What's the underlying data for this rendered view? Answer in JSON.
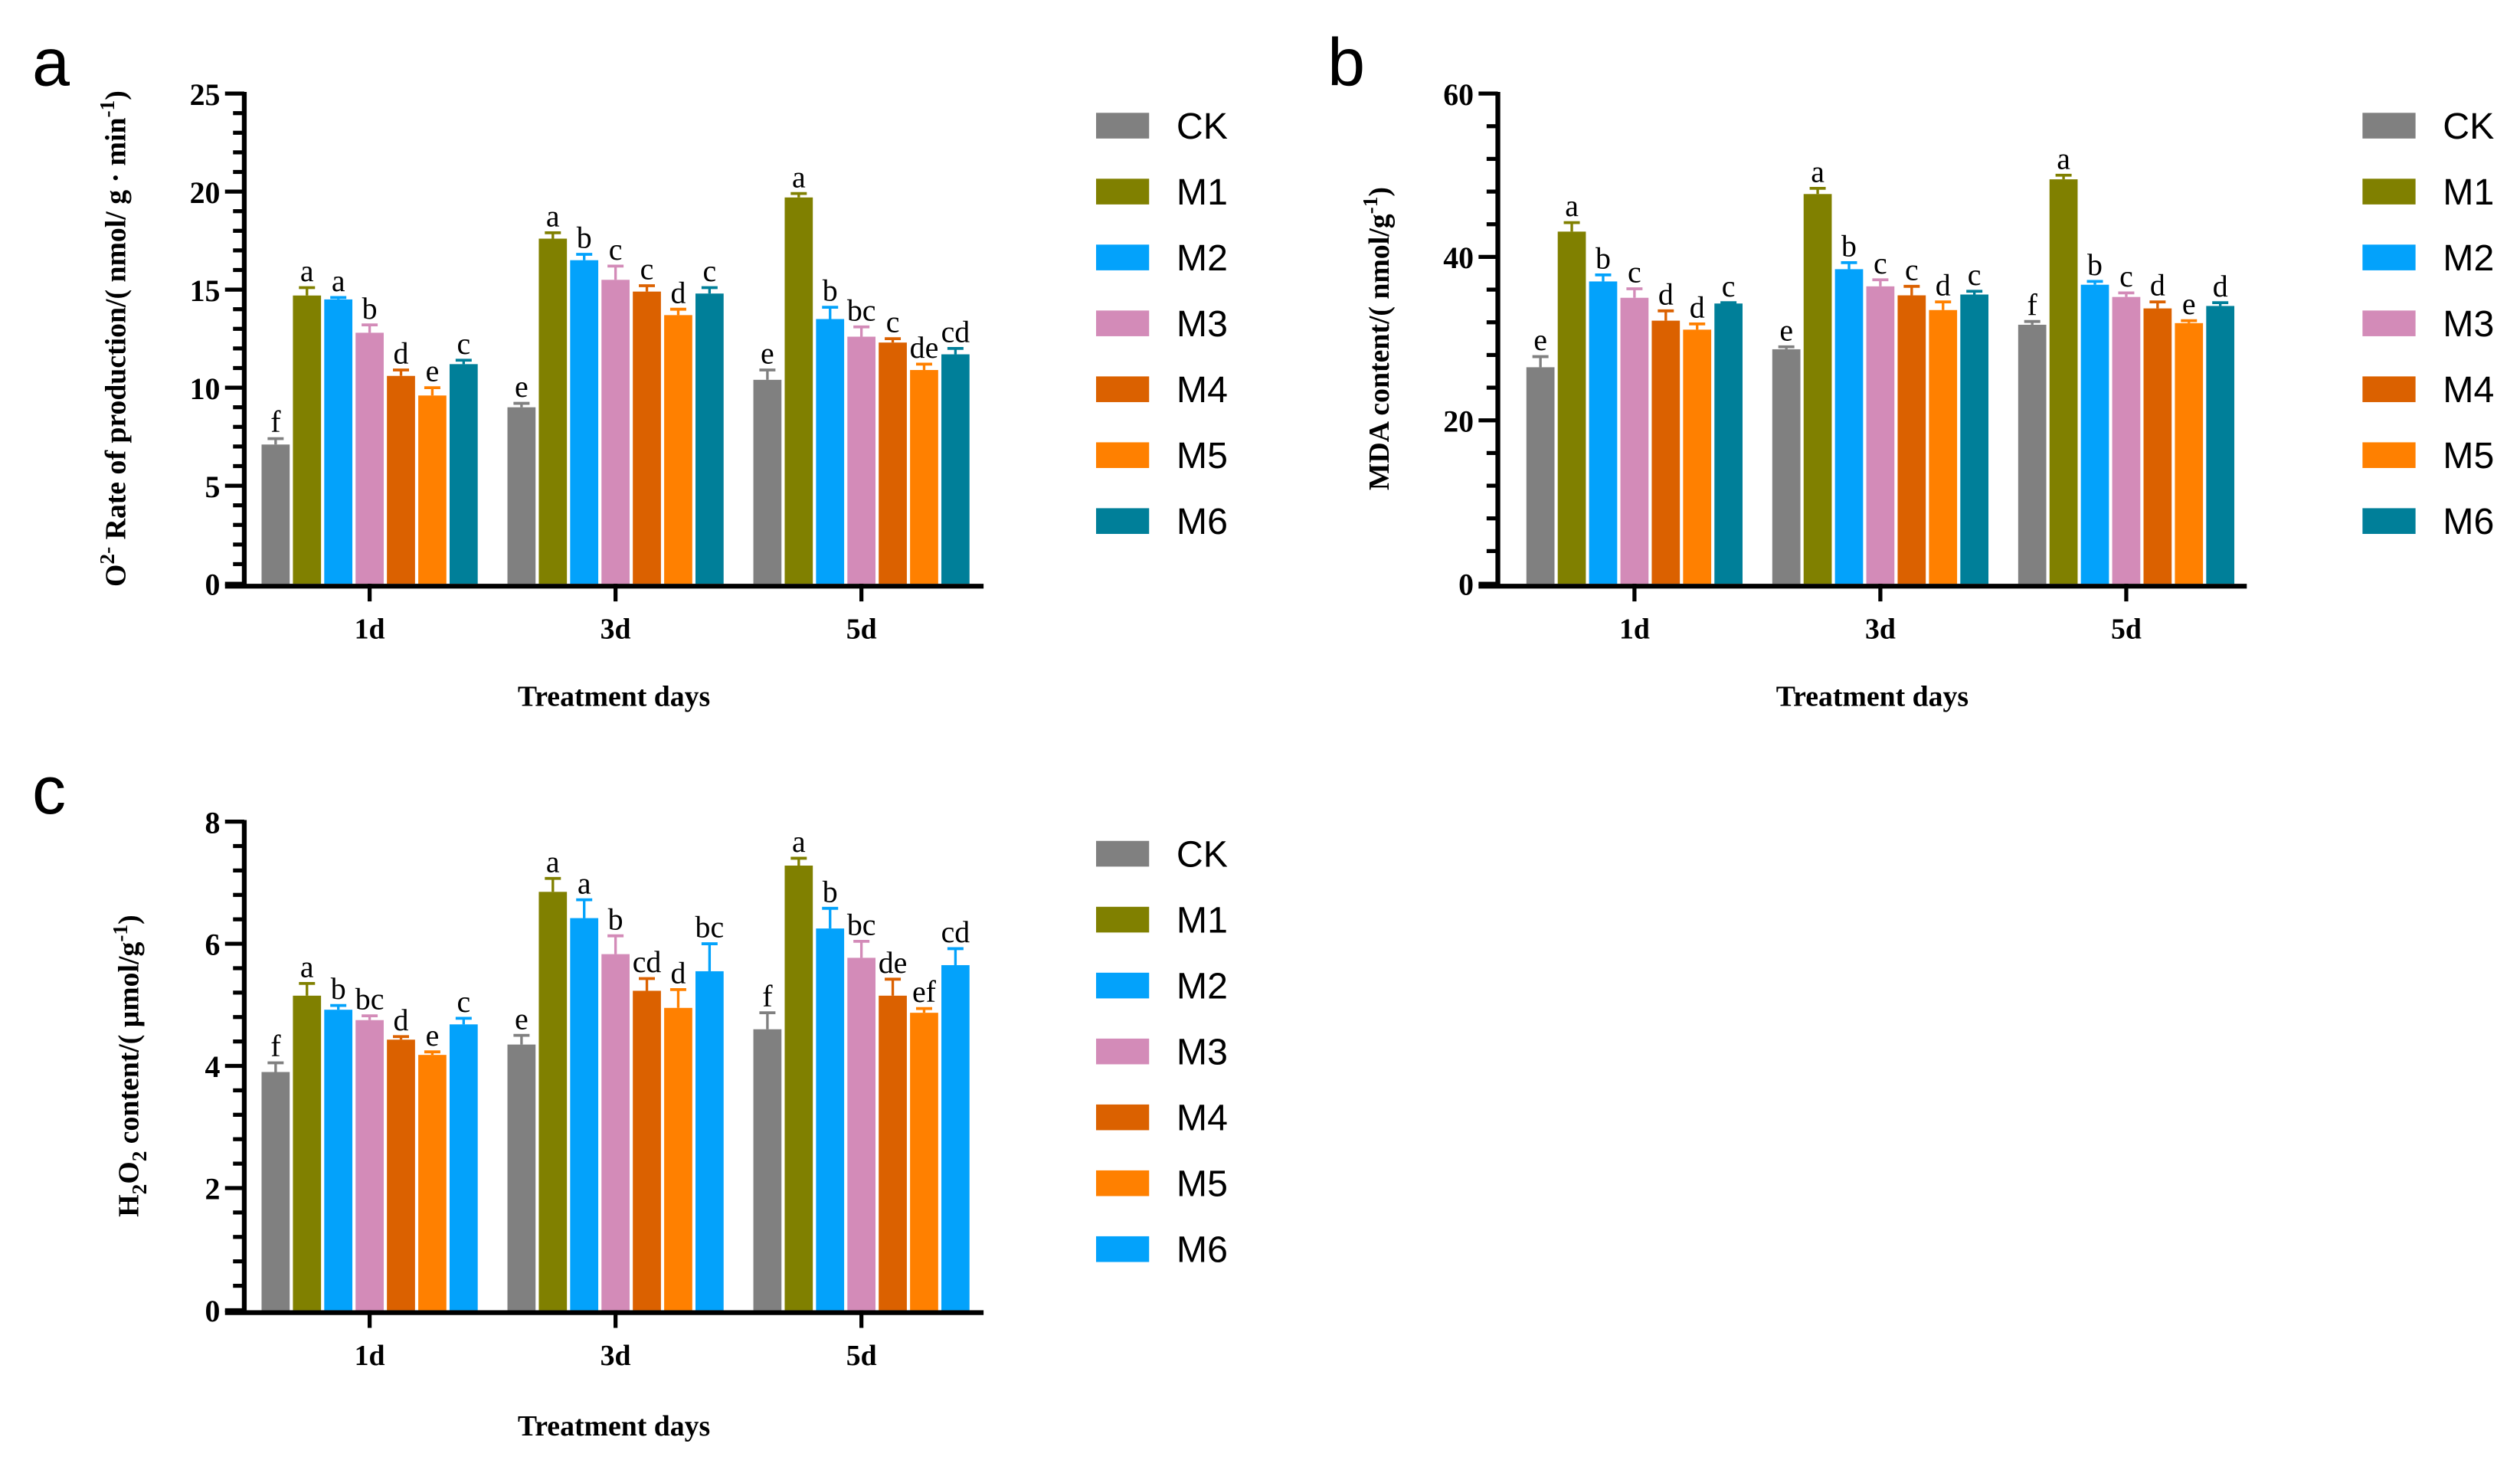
{
  "chart_data": [
    {
      "panel": "a",
      "type": "bar",
      "ylabel_segments": [
        {
          "t": "O"
        },
        {
          "t": "2-",
          "sup": true
        },
        {
          "t": " Rate of production/( nmol/ g · min"
        },
        {
          "t": "-1",
          "sup": true
        },
        {
          "t": ")"
        }
      ],
      "xlabel": "Treatment days",
      "ylim": [
        0,
        25
      ],
      "major_step": 5,
      "minor_step": 1,
      "yticks": [
        "0",
        "5",
        "10",
        "15",
        "20",
        "25"
      ],
      "categories": [
        "1d",
        "3d",
        "5d"
      ],
      "series": [
        {
          "name": "CK",
          "color": "#808080",
          "values": [
            7.1,
            9.0,
            10.4
          ],
          "errors": [
            0.3,
            0.2,
            0.5
          ],
          "letters": [
            "f",
            "e",
            "e"
          ]
        },
        {
          "name": "M1",
          "color": "#808000",
          "values": [
            14.7,
            17.6,
            19.7
          ],
          "errors": [
            0.4,
            0.3,
            0.2
          ],
          "letters": [
            "a",
            "a",
            "a"
          ]
        },
        {
          "name": "M2",
          "color": "#03A2FB",
          "values": [
            14.5,
            16.5,
            13.5
          ],
          "errors": [
            0.1,
            0.3,
            0.6
          ],
          "letters": [
            "a",
            "b",
            "b"
          ]
        },
        {
          "name": "M3",
          "color": "#D38BB8",
          "values": [
            12.8,
            15.5,
            12.6
          ],
          "errors": [
            0.4,
            0.7,
            0.5
          ],
          "letters": [
            "b",
            "c",
            "bc"
          ]
        },
        {
          "name": "M4",
          "color": "#DB6100",
          "values": [
            10.6,
            14.9,
            12.3
          ],
          "errors": [
            0.3,
            0.3,
            0.2
          ],
          "letters": [
            "d",
            "c",
            "c"
          ]
        },
        {
          "name": "M5",
          "color": "#FF8000",
          "values": [
            9.6,
            13.7,
            10.9
          ],
          "errors": [
            0.4,
            0.3,
            0.3
          ],
          "letters": [
            "e",
            "d",
            "de"
          ]
        },
        {
          "name": "M6",
          "color": "#007F99",
          "values": [
            11.2,
            14.8,
            11.7
          ],
          "errors": [
            0.2,
            0.3,
            0.3
          ],
          "letters": [
            "c",
            "c",
            "cd"
          ]
        }
      ],
      "legend": "right"
    },
    {
      "panel": "b",
      "type": "bar",
      "ylabel_segments": [
        {
          "t": "MDA content/( nmol/g"
        },
        {
          "t": "-1",
          "sup": true
        },
        {
          "t": ")"
        }
      ],
      "xlabel": "Treatment days",
      "ylim": [
        0,
        60
      ],
      "major_step": 20,
      "minor_step": 4,
      "yticks": [
        "0",
        "20",
        "40",
        "60"
      ],
      "categories": [
        "1d",
        "3d",
        "5d"
      ],
      "series": [
        {
          "name": "CK",
          "color": "#808080",
          "values": [
            26.5,
            28.7,
            31.7
          ],
          "errors": [
            1.3,
            0.3,
            0.4
          ],
          "letters": [
            "e",
            "e",
            "f"
          ]
        },
        {
          "name": "M1",
          "color": "#808000",
          "values": [
            43.1,
            47.7,
            49.5
          ],
          "errors": [
            1.1,
            0.7,
            0.5
          ],
          "letters": [
            "a",
            "a",
            "a"
          ]
        },
        {
          "name": "M2",
          "color": "#03A2FB",
          "values": [
            37.0,
            38.5,
            36.6
          ],
          "errors": [
            0.8,
            0.8,
            0.4
          ],
          "letters": [
            "b",
            "b",
            "b"
          ]
        },
        {
          "name": "M3",
          "color": "#D38BB8",
          "values": [
            35.0,
            36.4,
            35.1
          ],
          "errors": [
            1.1,
            0.8,
            0.5
          ],
          "letters": [
            "c",
            "c",
            "c"
          ]
        },
        {
          "name": "M4",
          "color": "#DB6100",
          "values": [
            32.2,
            35.3,
            33.7
          ],
          "errors": [
            1.2,
            1.1,
            0.8
          ],
          "letters": [
            "d",
            "c",
            "d"
          ]
        },
        {
          "name": "M5",
          "color": "#FF8000",
          "values": [
            31.1,
            33.5,
            31.9
          ],
          "errors": [
            0.7,
            1.0,
            0.3
          ],
          "letters": [
            "d",
            "d",
            "e"
          ]
        },
        {
          "name": "M6",
          "color": "#007F99",
          "values": [
            34.3,
            35.4,
            34.0
          ],
          "errors": [
            0.1,
            0.4,
            0.4
          ],
          "letters": [
            "c",
            "c",
            "d"
          ]
        }
      ],
      "legend": "right"
    },
    {
      "panel": "c",
      "type": "bar",
      "ylabel_segments": [
        {
          "t": "H"
        },
        {
          "t": "2",
          "sub": true
        },
        {
          "t": "O"
        },
        {
          "t": "2",
          "sub": true
        },
        {
          "t": " content/( μmol/g"
        },
        {
          "t": "-1",
          "sup": true
        },
        {
          "t": ")"
        }
      ],
      "xlabel": "Treatment days",
      "ylim": [
        0,
        8
      ],
      "major_step": 2,
      "minor_step": 0.4,
      "yticks": [
        "0",
        "2",
        "4",
        "6",
        "8"
      ],
      "categories": [
        "1d",
        "3d",
        "5d"
      ],
      "series": [
        {
          "name": "CK",
          "color": "#808080",
          "values": [
            3.9,
            4.35,
            4.6
          ],
          "errors": [
            0.15,
            0.15,
            0.27
          ],
          "letters": [
            "f",
            "e",
            "f"
          ]
        },
        {
          "name": "M1",
          "color": "#808000",
          "values": [
            5.15,
            6.85,
            7.28
          ],
          "errors": [
            0.2,
            0.22,
            0.12
          ],
          "letters": [
            "a",
            "a",
            "a"
          ]
        },
        {
          "name": "M2",
          "color": "#03A2FB",
          "values": [
            4.92,
            6.42,
            6.25
          ],
          "errors": [
            0.07,
            0.3,
            0.33
          ],
          "letters": [
            "b",
            "a",
            "b"
          ]
        },
        {
          "name": "M3",
          "color": "#D38BB8",
          "values": [
            4.75,
            5.83,
            5.77
          ],
          "errors": [
            0.07,
            0.3,
            0.27
          ],
          "letters": [
            "bc",
            "b",
            "bc"
          ]
        },
        {
          "name": "M4",
          "color": "#DB6100",
          "values": [
            4.43,
            5.23,
            5.15
          ],
          "errors": [
            0.05,
            0.2,
            0.27
          ],
          "letters": [
            "d",
            "cd",
            "de"
          ]
        },
        {
          "name": "M5",
          "color": "#FF8000",
          "values": [
            4.18,
            4.95,
            4.87
          ],
          "errors": [
            0.05,
            0.3,
            0.07
          ],
          "letters": [
            "e",
            "d",
            "ef"
          ]
        },
        {
          "name": "M6",
          "color": "#03A2FB",
          "values": [
            4.68,
            5.55,
            5.65
          ],
          "errors": [
            0.1,
            0.45,
            0.27
          ],
          "letters": [
            "c",
            "bc",
            "cd"
          ]
        }
      ],
      "legend": "right"
    }
  ]
}
